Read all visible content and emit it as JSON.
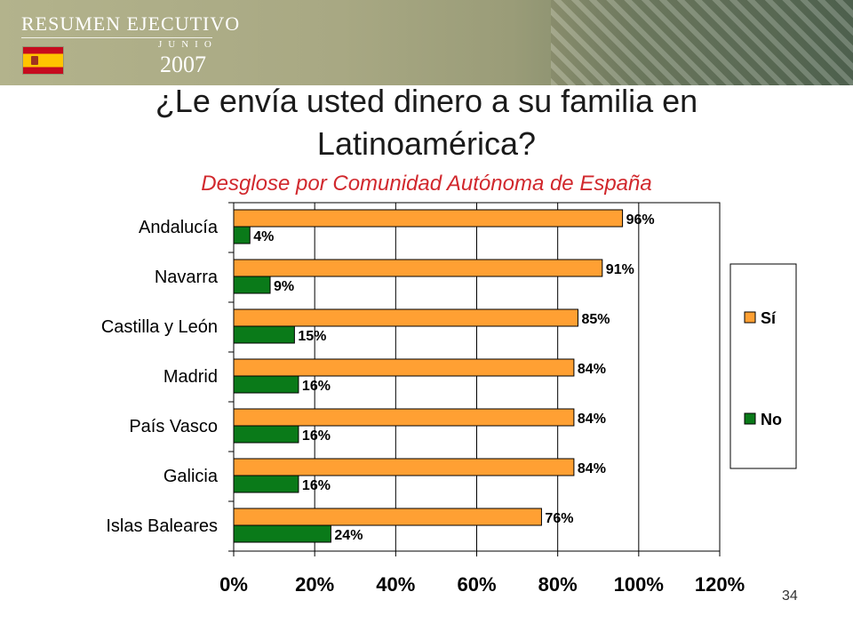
{
  "header": {
    "title": "RESUMEN EJECUTIVO",
    "month": "JUNIO",
    "year": "2007",
    "flag_icon": "spain-flag-icon"
  },
  "slide": {
    "title": "¿Le envía usted dinero a su familia en Latinoamérica?",
    "subtitle": "Desglose por Comunidad Autónoma de España",
    "page_number": "34"
  },
  "colors": {
    "si": "#FFA033",
    "no": "#0A7A19",
    "subtitle": "#D1282D"
  },
  "chart_data": {
    "type": "bar",
    "orientation": "horizontal",
    "categories": [
      "Andalucía",
      "Navarra",
      "Castilla y León",
      "Madrid",
      "País Vasco",
      "Galicia",
      "Islas Baleares"
    ],
    "series": [
      {
        "name": "Sí",
        "values": [
          96,
          91,
          85,
          84,
          84,
          84,
          76
        ],
        "labels": [
          "96%",
          "91%",
          "85%",
          "84%",
          "84%",
          "84%",
          "76%"
        ]
      },
      {
        "name": "No",
        "values": [
          4,
          9,
          15,
          16,
          16,
          16,
          24
        ],
        "labels": [
          "4%",
          "9%",
          "15%",
          "16%",
          "16%",
          "16%",
          "24%"
        ]
      }
    ],
    "xlim": [
      0,
      120
    ],
    "xticks": [
      "0%",
      "20%",
      "40%",
      "60%",
      "80%",
      "100%",
      "120%"
    ],
    "grid": true,
    "legend_position": "right"
  }
}
